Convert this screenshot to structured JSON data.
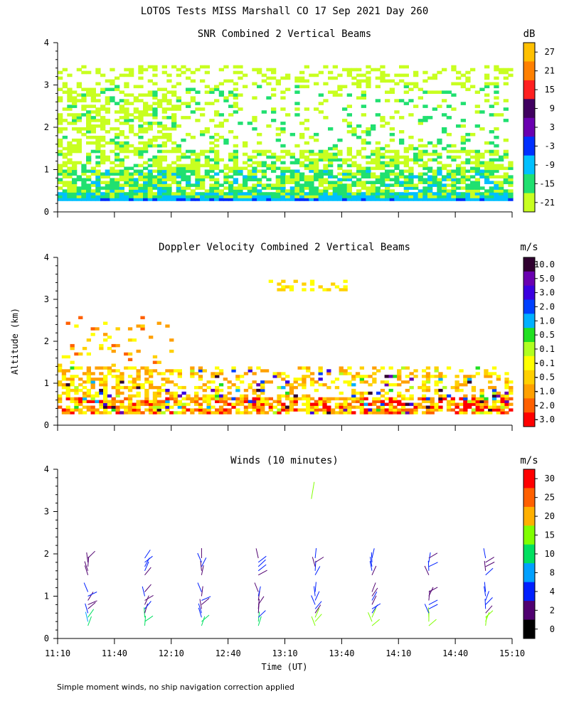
{
  "header": {
    "title": "LOTOS Tests MISS Marshall CO  17 Sep 2021 Day 260",
    "ylabel": "Altitude (km)",
    "xlabel": "Time (UT)",
    "footnote": "Simple moment winds, no ship navigation correction applied"
  },
  "time_ticks": [
    "11:10",
    "11:40",
    "12:10",
    "12:40",
    "13:10",
    "13:40",
    "14:10",
    "14:40",
    "15:10"
  ],
  "chart_data": [
    {
      "id": "snr",
      "type": "heatmap",
      "title": "SNR Combined 2 Vertical Beams",
      "xlabel": "Time (UT)",
      "ylabel": "Altitude (km)",
      "xlim": [
        "11:10",
        "15:10"
      ],
      "ylim": [
        0,
        4
      ],
      "yticks": [
        "0",
        "1",
        "2",
        "3",
        "4"
      ],
      "colorbar": {
        "unit": "dB",
        "labels": [
          "27",
          "21",
          "15",
          "9",
          "3",
          "-3",
          "-9",
          "-15",
          "-21"
        ],
        "colors": [
          "#ffc000",
          "#ff8000",
          "#ff2020",
          "#400060",
          "#6a00b0",
          "#0030ff",
          "#00c0ff",
          "#20e070",
          "#c8ff20"
        ]
      },
      "description_bands": [
        {
          "alt_km": [
            0.25,
            0.45
          ],
          "level": "-9 to -3"
        },
        {
          "alt_km": [
            0.45,
            1.4
          ],
          "level": "-21 to -9"
        },
        {
          "alt_km": [
            1.4,
            3.4
          ],
          "level": "-21 to -15, sparse"
        }
      ]
    },
    {
      "id": "doppler",
      "type": "heatmap",
      "title": "Doppler Velocity Combined 2 Vertical Beams",
      "xlabel": "Time (UT)",
      "ylabel": "Altitude (km)",
      "xlim": [
        "11:10",
        "15:10"
      ],
      "ylim": [
        0,
        4
      ],
      "yticks": [
        "0",
        "1",
        "2",
        "3",
        "4"
      ],
      "colorbar": {
        "unit": "m/s",
        "labels": [
          "10.0",
          "5.0",
          "3.0",
          "2.0",
          "1.0",
          "0.5",
          "0.1",
          "-0.1",
          "-0.5",
          "-1.0",
          "-2.0",
          "-3.0"
        ],
        "colors": [
          "#300030",
          "#6a00b0",
          "#3a00e0",
          "#0040ff",
          "#00b0ff",
          "#20e020",
          "#b0ff20",
          "#ffff00",
          "#ffd000",
          "#ffa000",
          "#ff6000",
          "#ff0000"
        ]
      }
    },
    {
      "id": "winds",
      "type": "scatter",
      "title": "Winds (10 minutes)",
      "xlabel": "Time (UT)",
      "ylabel": "Altitude (km)",
      "xlim": [
        "11:10",
        "15:10"
      ],
      "ylim": [
        0,
        4
      ],
      "yticks": [
        "0",
        "1",
        "2",
        "3",
        "4"
      ],
      "colorbar": {
        "unit": "m/s",
        "labels": [
          "30",
          "25",
          "20",
          "15",
          "10",
          "8",
          "4",
          "2",
          "0"
        ],
        "colors": [
          "#ff0000",
          "#ff6000",
          "#ffb000",
          "#80ff00",
          "#00e060",
          "#00a0ff",
          "#0020ff",
          "#500070",
          "#000000"
        ]
      },
      "profile_times": [
        "11:30",
        "12:00",
        "12:30",
        "13:00",
        "13:30",
        "14:00",
        "14:30",
        "15:00"
      ]
    }
  ]
}
